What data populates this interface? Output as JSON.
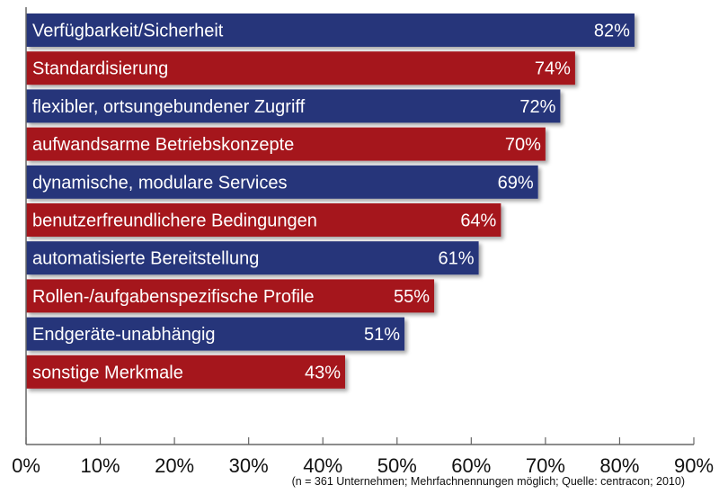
{
  "chart_data": {
    "type": "bar",
    "orientation": "horizontal",
    "categories": [
      "Verfügbarkeit/Sicherheit",
      "Standardisierung",
      "flexibler, ortsungebundener Zugriff",
      "aufwandsarme Betriebskonzepte",
      "dynamische, modulare Services",
      "benutzerfreundlichere Bedingungen",
      "automatisierte Bereitstellung",
      "Rollen-/aufgabenspezifische Profile",
      "Endgeräte-unabhängig",
      "sonstige Merkmale"
    ],
    "values": [
      82,
      74,
      72,
      70,
      69,
      64,
      61,
      55,
      51,
      43
    ],
    "data_labels": [
      "82%",
      "74%",
      "72%",
      "70%",
      "69%",
      "64%",
      "61%",
      "55%",
      "51%",
      "43%"
    ],
    "colors": [
      "#25367a",
      "#a5161f"
    ],
    "xlim": [
      0,
      90
    ],
    "xticks": [
      "0%",
      "10%",
      "20%",
      "30%",
      "40%",
      "50%",
      "60%",
      "70%",
      "80%",
      "90%"
    ],
    "grid": false,
    "footnote": "(n = 361 Unternehmen; Mehrfachnennungen möglich; Quelle: centracon; 2010)"
  }
}
